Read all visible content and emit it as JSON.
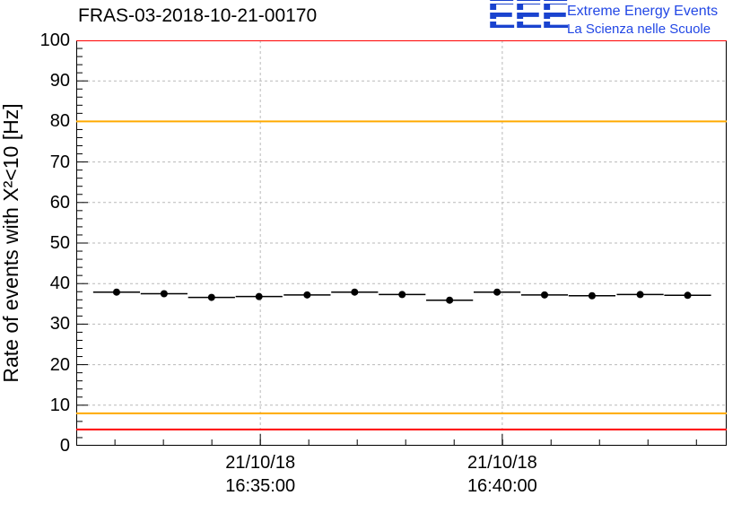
{
  "logo": {
    "letters": "EEE",
    "line1": "Extreme Energy Events",
    "line2": "La Scienza nelle Scuole",
    "color": "#2247e5"
  },
  "chart_data": {
    "type": "scatter",
    "title": "FRAS-03-2018-10-21-00170",
    "ylabel": "Rate of events with X²<10 [Hz]",
    "xlabel": "",
    "ylim": [
      0,
      100
    ],
    "y_ticks": [
      0,
      10,
      20,
      30,
      40,
      50,
      60,
      70,
      80,
      90,
      100
    ],
    "y_minor_step": 2,
    "grid": true,
    "grid_color": "#b9b9b9",
    "x_ticks": [
      {
        "label_line1": "21/10/18",
        "label_line2": "16:35:00",
        "frac": 0.283
      },
      {
        "label_line1": "21/10/18",
        "label_line2": "16:40:00",
        "frac": 0.655
      }
    ],
    "x_minor_step_frac": 0.0745,
    "ref_lines": [
      {
        "y": 100,
        "color": "#ff0000"
      },
      {
        "y": 80,
        "color": "#ffaa00"
      },
      {
        "y": 8,
        "color": "#ffaa00"
      },
      {
        "y": 4,
        "color": "#ff0000"
      }
    ],
    "series": [
      {
        "name": "event-rate",
        "marker": "circle",
        "color": "#000000",
        "bin_halfwidth_frac": 0.036,
        "y_err": 0.5,
        "points": [
          {
            "x_frac": 0.062,
            "y": 37.9
          },
          {
            "x_frac": 0.135,
            "y": 37.5
          },
          {
            "x_frac": 0.208,
            "y": 36.6
          },
          {
            "x_frac": 0.281,
            "y": 36.8
          },
          {
            "x_frac": 0.355,
            "y": 37.2
          },
          {
            "x_frac": 0.428,
            "y": 37.9
          },
          {
            "x_frac": 0.501,
            "y": 37.3
          },
          {
            "x_frac": 0.574,
            "y": 35.9
          },
          {
            "x_frac": 0.647,
            "y": 37.9
          },
          {
            "x_frac": 0.72,
            "y": 37.2
          },
          {
            "x_frac": 0.793,
            "y": 37.0
          },
          {
            "x_frac": 0.867,
            "y": 37.3
          },
          {
            "x_frac": 0.94,
            "y": 37.1
          }
        ]
      }
    ]
  }
}
